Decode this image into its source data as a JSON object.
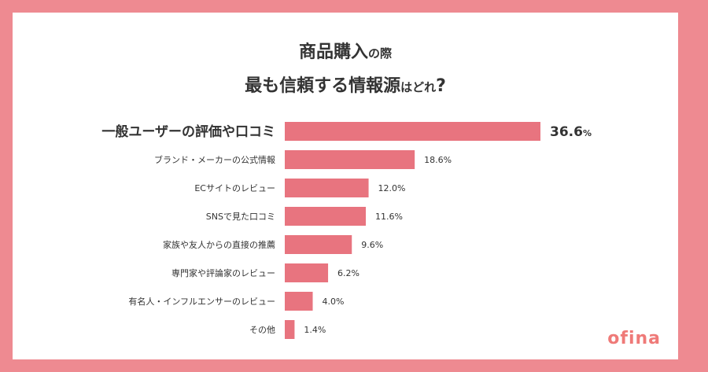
{
  "title": {
    "line1_main": "商品購入",
    "line1_small": "の際",
    "line2_a": "最も信頼する情報源",
    "line2_small": "はどれ",
    "line2_end": "?"
  },
  "logo": {
    "text": "ofina",
    "color": "#ef7a78"
  },
  "colors": {
    "bar": "#e8747f",
    "frame": "#ee8a91",
    "text": "#333333"
  },
  "chart_data": {
    "type": "bar",
    "orientation": "horizontal",
    "categories": [
      "一般ユーザーの評価や口コミ",
      "ブランド・メーカーの公式情報",
      "ECサイトのレビュー",
      "SNSで見た口コミ",
      "家族や友人からの直接の推薦",
      "専門家や評論家のレビュー",
      "有名人・インフルエンサーのレビュー",
      "その他"
    ],
    "values": [
      36.6,
      18.6,
      12.0,
      11.6,
      9.6,
      6.2,
      4.0,
      1.4
    ],
    "value_labels": [
      "36.6",
      "18.6%",
      "12.0%",
      "11.6%",
      "9.6%",
      "6.2%",
      "4.0%",
      "1.4%"
    ],
    "highlight_unit": "%",
    "unit": "%",
    "xlim": [
      0,
      36.6
    ],
    "grid": false,
    "title": "商品購入の際 最も信頼する情報源はどれ?"
  }
}
